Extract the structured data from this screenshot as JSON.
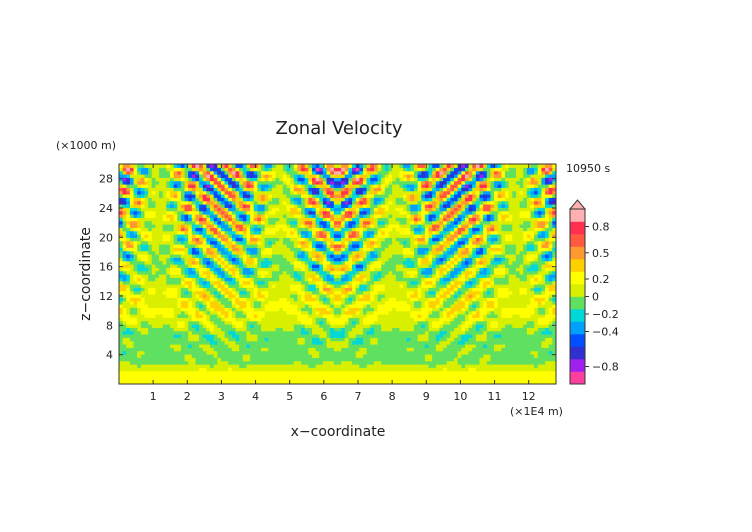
{
  "chart_data": {
    "type": "heatmap",
    "title": "Zonal Velocity",
    "xlabel": "x−coordinate",
    "ylabel": "z−coordinate",
    "x_unit": "(×1E4 m)",
    "y_unit": "(×1000 m)",
    "time_label": "10950 s",
    "xlim": [
      0,
      12.8
    ],
    "ylim": [
      0,
      30
    ],
    "x_ticks": [
      "1",
      "2",
      "3",
      "4",
      "5",
      "6",
      "7",
      "8",
      "9",
      "10",
      "11",
      "12"
    ],
    "y_ticks": [
      "4",
      "8",
      "12",
      "16",
      "20",
      "24",
      "28"
    ],
    "colorbar": {
      "tick_labels": [
        "0.8",
        "0.5",
        "0.2",
        "0",
        "−0.2",
        "−0.4",
        "−0.8"
      ],
      "tick_values": [
        0.8,
        0.5,
        0.2,
        0,
        -0.2,
        -0.4,
        -0.8
      ],
      "range": [
        -1.0,
        1.0
      ],
      "colors": [
        "#ff3fa0",
        "#a020f0",
        "#3030d0",
        "#0050ff",
        "#00a0ff",
        "#00d8d8",
        "#60e060",
        "#d8f000",
        "#ffff00",
        "#ffd000",
        "#ff9a30",
        "#ff5a40",
        "#ff3050",
        "#ffb0b0"
      ]
    },
    "grid": false,
    "legend": "colorbar-right"
  }
}
